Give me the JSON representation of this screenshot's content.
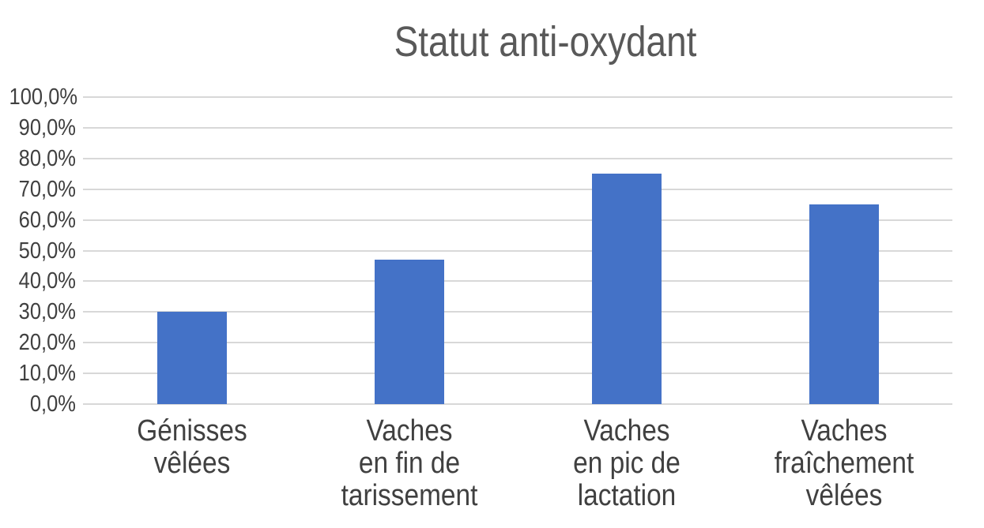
{
  "chart_data": {
    "type": "bar",
    "title": "Statut anti-oxydant",
    "categories": [
      "Génisses\nvêlées",
      "Vaches\nen fin de\ntarissement",
      "Vaches\nen pic de\nlactation",
      "Vaches\nfraîchement\nvêlées"
    ],
    "values": [
      30,
      47,
      75,
      65
    ],
    "series_unit": "%",
    "xlabel": "",
    "ylabel": "",
    "ylim": [
      0,
      100
    ],
    "y_ticks": [
      {
        "value": 0,
        "label": "0,0%"
      },
      {
        "value": 10,
        "label": "10,0%"
      },
      {
        "value": 20,
        "label": "20,0%"
      },
      {
        "value": 30,
        "label": "30,0%"
      },
      {
        "value": 40,
        "label": "40,0%"
      },
      {
        "value": 50,
        "label": "50,0%"
      },
      {
        "value": 60,
        "label": "60,0%"
      },
      {
        "value": 70,
        "label": "70,0%"
      },
      {
        "value": 80,
        "label": "80,0%"
      },
      {
        "value": 90,
        "label": "90,0%"
      },
      {
        "value": 100,
        "label": "100,0%"
      }
    ],
    "grid": "horizontal",
    "legend_position": "none",
    "colors": {
      "bar": "#4472c7",
      "gridline": "#d8d8d8",
      "title_text": "#595959",
      "axis_text": "#404040",
      "background": "#ffffff"
    }
  }
}
